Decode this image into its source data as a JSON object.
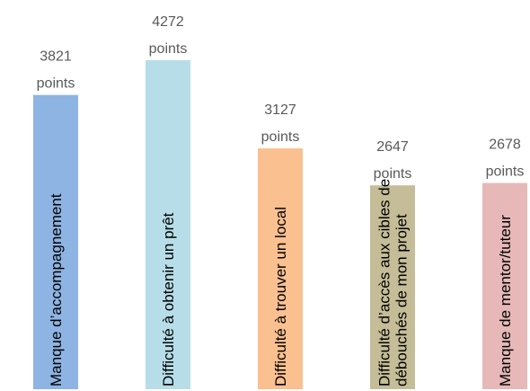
{
  "chart_data": {
    "type": "bar",
    "title": "",
    "xlabel": "",
    "ylabel": "",
    "unit": "points",
    "grid": false,
    "legend": "none",
    "categories": [
      [
        "Manque d’accompagnement"
      ],
      [
        "Difficulté à obtenir un prêt"
      ],
      [
        "Difficulté à trouver un local"
      ],
      [
        "Difficulté d’accès aux cibles de",
        "débouchés de mon projet"
      ],
      [
        "Manque de mentor/tuteur"
      ]
    ],
    "values": [
      3821,
      4272,
      3127,
      2647,
      2678
    ],
    "colors": [
      "#8EB4E3",
      "#B7DEE8",
      "#FAC090",
      "#C4BD97",
      "#E6B9B8"
    ]
  }
}
